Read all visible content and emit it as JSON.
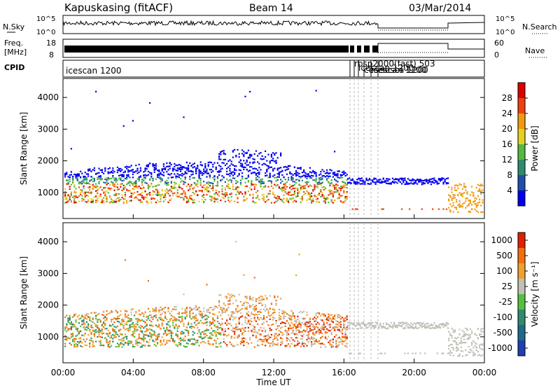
{
  "header": {
    "station": "Kapuskasing (fitACF)",
    "beam": "Beam 14",
    "date": "03/Mar/2014"
  },
  "top_panels": {
    "nsky_label": "N.Sky",
    "nsky_ticks": [
      "10^5",
      "10^0"
    ],
    "nsearch_label": "N.Search",
    "nsearch_ticks": [
      "10^5",
      "10^0"
    ],
    "freq_label_line1": "Freq.",
    "freq_label_line2": "[MHz]",
    "freq_ticks": [
      "18",
      "8"
    ],
    "nave_label": "Nave",
    "nave_ticks": [
      "60",
      "0"
    ],
    "cpid_label": "CPID",
    "cpid_main": "icescan 1200",
    "cpid_cluster": [
      "rbsp2000(fast) 503",
      "icescan 1200",
      "cesisesca 1200",
      "icescan 1200"
    ]
  },
  "chart_data": [
    {
      "type": "heatmap",
      "title": "",
      "ylabel": "Slant Range [km]",
      "xlabel": "",
      "ylim": [
        180,
        4600
      ],
      "yticks": [
        "1000",
        "2000",
        "3000",
        "4000"
      ],
      "colorbar_label": "Power [dB]",
      "colorbar_ticks": [
        "4",
        "8",
        "12",
        "16",
        "20",
        "24",
        "28"
      ],
      "colors": [
        "#0000ee",
        "#1f4fa8",
        "#2f8a6f",
        "#55b840",
        "#e6d020",
        "#f19a10",
        "#ee4010",
        "#dd0000"
      ]
    },
    {
      "type": "heatmap",
      "title": "",
      "ylabel": "Slant Range [km]",
      "xlabel": "Time UT",
      "ylim": [
        180,
        4600
      ],
      "yticks": [
        "1000",
        "2000",
        "3000",
        "4000"
      ],
      "xticks": [
        "00:00",
        "04:00",
        "08:00",
        "12:00",
        "16:00",
        "20:00",
        "00:00"
      ],
      "colorbar_label": "Velocity [m s⁻¹]",
      "colorbar_ticks": [
        "1000",
        "500",
        "100",
        "25",
        "-25",
        "-100",
        "-500",
        "-1000"
      ],
      "colors": [
        "#2040b0",
        "#1f6a8a",
        "#2f8a6f",
        "#55c040",
        "#c0c0b8",
        "#f0a030",
        "#f07010",
        "#e02000"
      ]
    }
  ]
}
